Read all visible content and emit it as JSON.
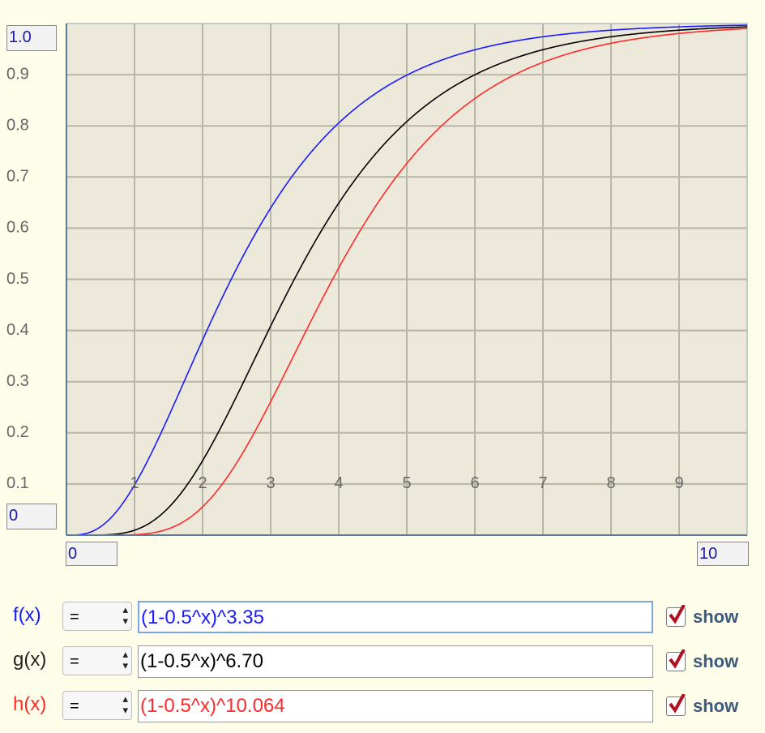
{
  "graph": {
    "xlim": [
      0,
      10
    ],
    "ylim": [
      0,
      {
        "value": 1,
        "label": "1.0"
      }
    ],
    "xticks": [
      1,
      2,
      3,
      4,
      5,
      6,
      7,
      8,
      9
    ],
    "yticks": [
      0.1,
      0.2,
      0.3,
      0.4,
      0.5,
      0.6,
      0.7,
      0.8,
      0.9
    ]
  },
  "functions": [
    {
      "label": "f(x)",
      "op": "=",
      "expr": "(1-0.5^x)^3.35",
      "color": "#1a1aff",
      "show": "show",
      "checked": true
    },
    {
      "label": "g(x)",
      "op": "=",
      "expr": "(1-0.5^x)^6.70",
      "color": "#000000",
      "show": "show",
      "checked": true
    },
    {
      "label": "h(x)",
      "op": "=",
      "expr": "(1-0.5^x)^10.064",
      "color": "#ff2a2a",
      "show": "show",
      "checked": true
    }
  ]
}
